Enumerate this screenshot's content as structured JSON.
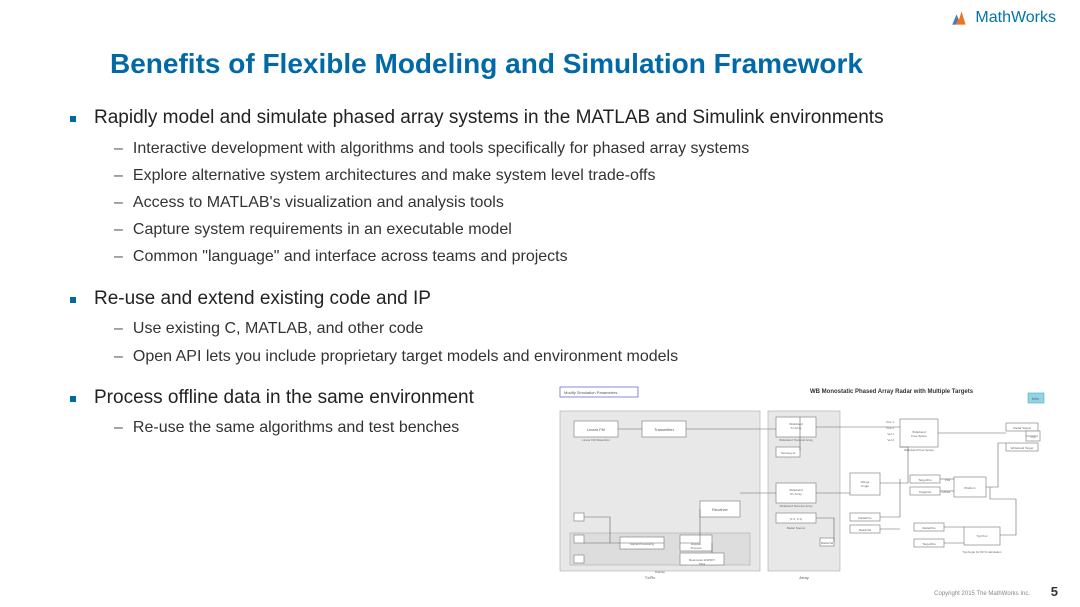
{
  "brand": {
    "name": "MathWorks"
  },
  "title": "Benefits of Flexible Modeling and Simulation Framework",
  "bullets": [
    {
      "text": "Rapidly model and simulate phased array systems in the MATLAB and Simulink environments",
      "subs": [
        "Interactive development with algorithms and tools specifically for phased array systems",
        "Explore alternative system architectures and make system level trade-offs",
        "Access to MATLAB's visualization and analysis tools",
        "Capture system requirements in an executable model",
        "Common \"language\" and interface across teams and projects"
      ]
    },
    {
      "text": "Re-use and extend existing code and IP",
      "subs": [
        "Use existing C, MATLAB, and other code",
        "Open API lets you include proprietary target models and environment models"
      ]
    },
    {
      "text": "Process offline data in the same environment",
      "subs": [
        "Re-use the same algorithms and test benches"
      ]
    }
  ],
  "diagram": {
    "title": "WB Monostatic Phased Array Radar with Multiple Targets",
    "button_label": "Modify Simulation Parameters",
    "info_label": "Info",
    "panels": {
      "tx_rx_label": "Tx/Rx",
      "array_label": "Array",
      "display_label": "Display"
    },
    "blocks": {
      "linear_fm": "Linear FM",
      "linear_fm_sub": "Linear FM Waveform",
      "transmitter": "Transmitter",
      "tx_array": "Wideband\nTx Array",
      "tx_array_sub": "Wideband Transmit Array",
      "receiver": "Receiver",
      "rx_array": "Wideband\nRx Array",
      "rx_array_sub": "Wideband Receive Array",
      "signal_proc": "Signal Processing",
      "doppler": "Doppler\nProcess",
      "beamscan": "Beamscan ESPRIT\nDOA",
      "range_angle": "Range\nAngle",
      "freespace": "Wideband\nFree Space",
      "freespace_sub": "Wideband Free Space",
      "platform": "Platform",
      "radar_pos": "RadarPos",
      "radar_vel": "RadarVel",
      "target_pos": "TargetPos",
      "target_vel": "TargetVel",
      "wb_target": "Wideband Target",
      "tgt_angle": "Tgt Angle for RCS calculation",
      "matrix": "[1 0; 0 1]",
      "radar_source": "Radar Source",
      "target_proc": "Tgt Proc",
      "sensing_id": "Sensing Id"
    }
  },
  "page_number": "5",
  "copyright": "Copyright 2015 The MathWorks Inc."
}
